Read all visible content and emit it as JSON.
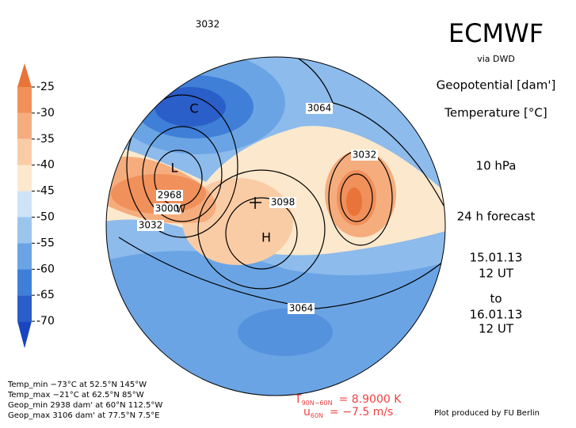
{
  "colorbar": {
    "labels": [
      -25,
      -30,
      -35,
      -40,
      -45,
      -50,
      -55,
      -60,
      -65,
      -70
    ],
    "colors": [
      "#e8743a",
      "#f0905a",
      "#f5ad7e",
      "#f9cca6",
      "#fce8cc",
      "#cde4f7",
      "#9cc5ee",
      "#6aa4e4",
      "#3f7fd8",
      "#2a5ec8",
      "#1a45c0"
    ]
  },
  "map": {
    "contour_labels": [
      "3032",
      "3064",
      "3032",
      "2968",
      "3000",
      "3032",
      "3098",
      "3064"
    ],
    "centers": [
      "C",
      "L",
      "H",
      "W"
    ]
  },
  "header": {
    "title": "ECMWF",
    "source": "via DWD",
    "fields": [
      "Geopotential [dam']",
      "Temperature [°C]"
    ],
    "level": "10 hPa",
    "forecast": "24 h forecast",
    "from_date": "15.01.13",
    "from_time": "12 UT",
    "to": "to",
    "to_date": "16.01.13",
    "to_time": "12 UT"
  },
  "stats": [
    "Temp_min −73°C at 52.5°N 145°W",
    "Temp_max −21°C at 62.5°N 85°W",
    "Geop_min 2938 dam' at 60°N 112.5°W",
    "Geop_max 3106 dam' at 77.5°N 7.5°E"
  ],
  "indices": [
    {
      "symbol": "T",
      "sub": "90N−60N",
      "text": "= 8.9000 K"
    },
    {
      "symbol": "u",
      "sub": "60N",
      "text": "= −7.5 m/s"
    }
  ],
  "credit": "Plot produced by FU Berlin"
}
